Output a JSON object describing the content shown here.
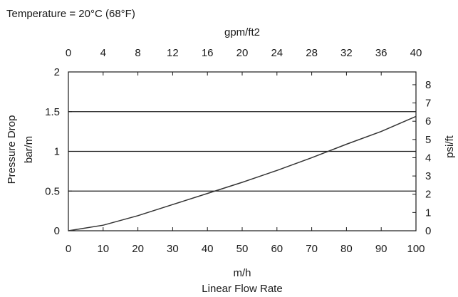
{
  "chart_data": {
    "type": "line",
    "annotation": "Temperature = 20°C (68°F)",
    "xlabel_unit": "m/h",
    "xlabel": "Linear Flow Rate",
    "ylabel": "Pressure Drop",
    "ylabel_unit": "bar/m",
    "x2label": "gpm/ft2",
    "y2label": "psi/ft",
    "xlim": [
      0,
      100
    ],
    "ylim": [
      0,
      2
    ],
    "x2lim": [
      0,
      40
    ],
    "y2lim": [
      0,
      8.7
    ],
    "xticks": [
      "0",
      "10",
      "20",
      "30",
      "40",
      "50",
      "60",
      "70",
      "80",
      "90",
      "100"
    ],
    "yticks": [
      "0",
      "0.5",
      "1",
      "1.5",
      "2"
    ],
    "x2ticks": [
      "0",
      "4",
      "8",
      "12",
      "16",
      "20",
      "24",
      "28",
      "32",
      "36",
      "40"
    ],
    "y2ticks": [
      "0",
      "1",
      "2",
      "3",
      "4",
      "5",
      "6",
      "7",
      "8"
    ],
    "grid": "horizontal",
    "series": [
      {
        "x": [
          0,
          10,
          20,
          30,
          40,
          50,
          60,
          70,
          80,
          90,
          100
        ],
        "y": [
          0,
          0.07,
          0.19,
          0.33,
          0.47,
          0.61,
          0.76,
          0.92,
          1.09,
          1.25,
          1.44
        ]
      }
    ]
  }
}
